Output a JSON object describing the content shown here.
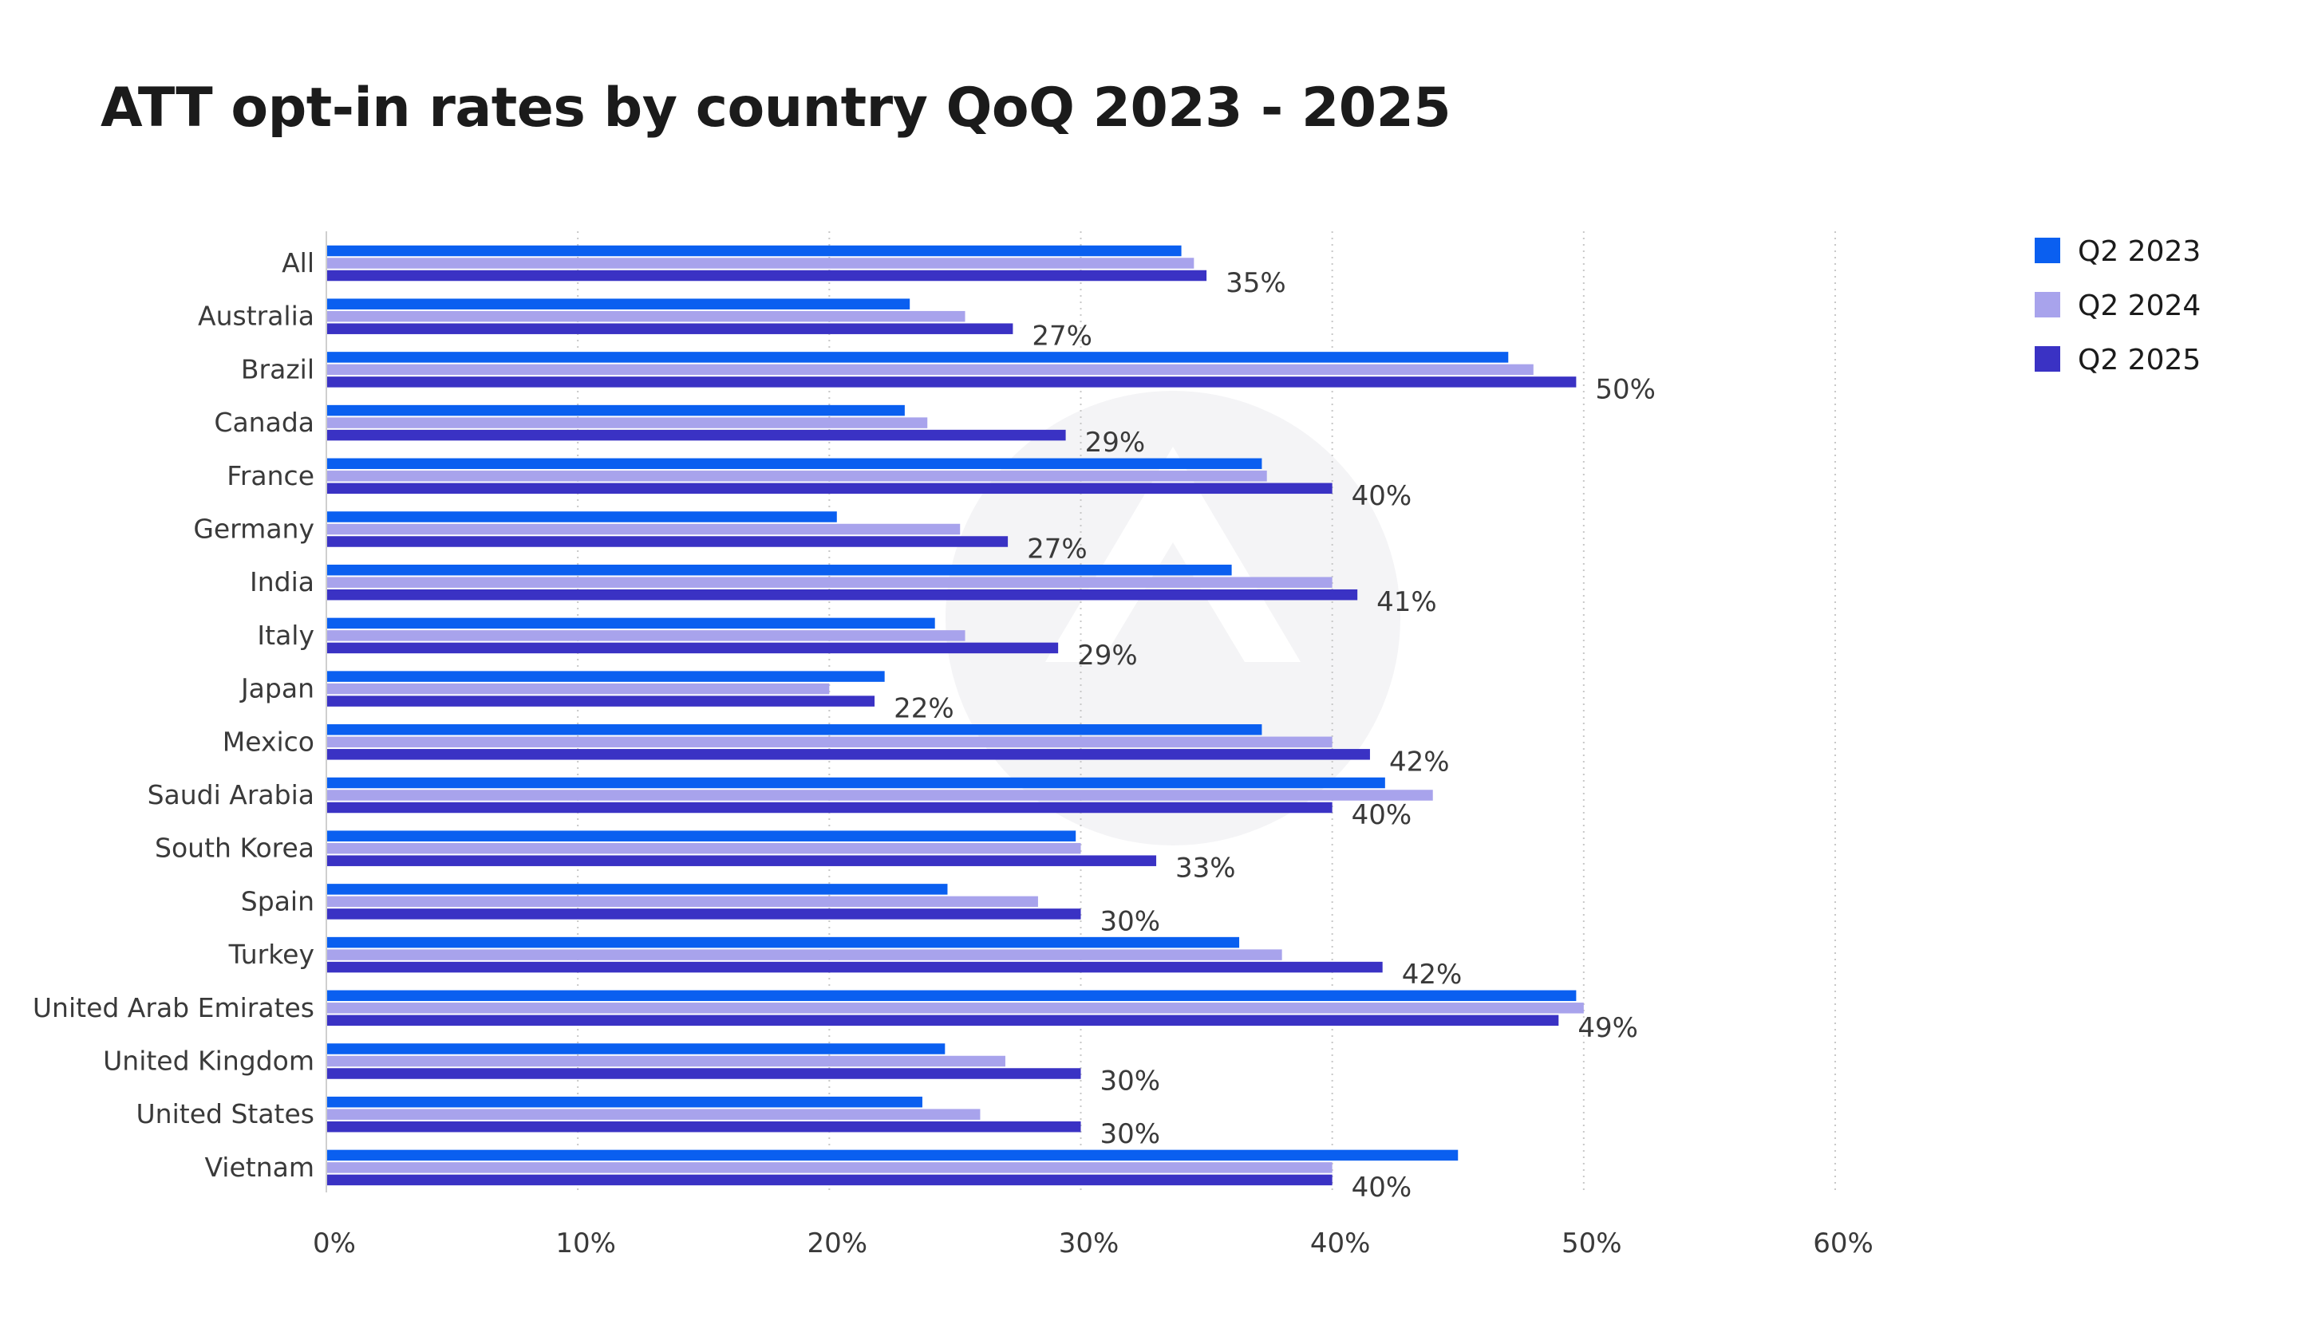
{
  "chart_data": {
    "type": "bar",
    "orientation": "horizontal",
    "title": "ATT opt-in rates by country QoQ 2023 - 2025",
    "xlabel": "",
    "ylabel": "",
    "xlim": [
      0,
      60
    ],
    "x_ticks": [
      0,
      10,
      20,
      30,
      40,
      50,
      60
    ],
    "x_tick_labels": [
      "0%",
      "10%",
      "20%",
      "30%",
      "40%",
      "50%",
      "60%"
    ],
    "grid": "vertical dotted",
    "legend_position": "top-right",
    "categories": [
      "All",
      "Australia",
      "Brazil",
      "Canada",
      "France",
      "Germany",
      "India",
      "Italy",
      "Japan",
      "Mexico",
      "Saudi Arabia",
      "South Korea",
      "Spain",
      "Turkey",
      "United Arab Emirates",
      "United Kingdom",
      "United States",
      "Vietnam"
    ],
    "series": [
      {
        "name": "Q2 2023",
        "color": "#0a5ff0",
        "values": [
          34,
          23.2,
          47,
          23,
          37.2,
          20.3,
          36,
          24.2,
          22.2,
          37.2,
          42.1,
          29.8,
          24.7,
          36.3,
          49.7,
          24.6,
          23.7,
          45
        ]
      },
      {
        "name": "Q2 2024",
        "color": "#a8a3ec",
        "values": [
          34.5,
          25.4,
          48,
          23.9,
          37.4,
          25.2,
          40,
          25.4,
          20,
          40,
          44,
          30,
          28.3,
          38,
          50,
          27,
          26,
          40
        ]
      },
      {
        "name": "Q2 2025",
        "color": "#3a32c4",
        "values": [
          35,
          27.3,
          49.7,
          29.4,
          40,
          27.1,
          41,
          29.1,
          21.8,
          41.5,
          40,
          33,
          30,
          42,
          49,
          30,
          30,
          40
        ]
      }
    ],
    "data_labels": [
      "35%",
      "27%",
      "50%",
      "29%",
      "40%",
      "27%",
      "41%",
      "29%",
      "22%",
      "42%",
      "40%",
      "33%",
      "30%",
      "42%",
      "49%",
      "30%",
      "30%",
      "40%"
    ]
  }
}
